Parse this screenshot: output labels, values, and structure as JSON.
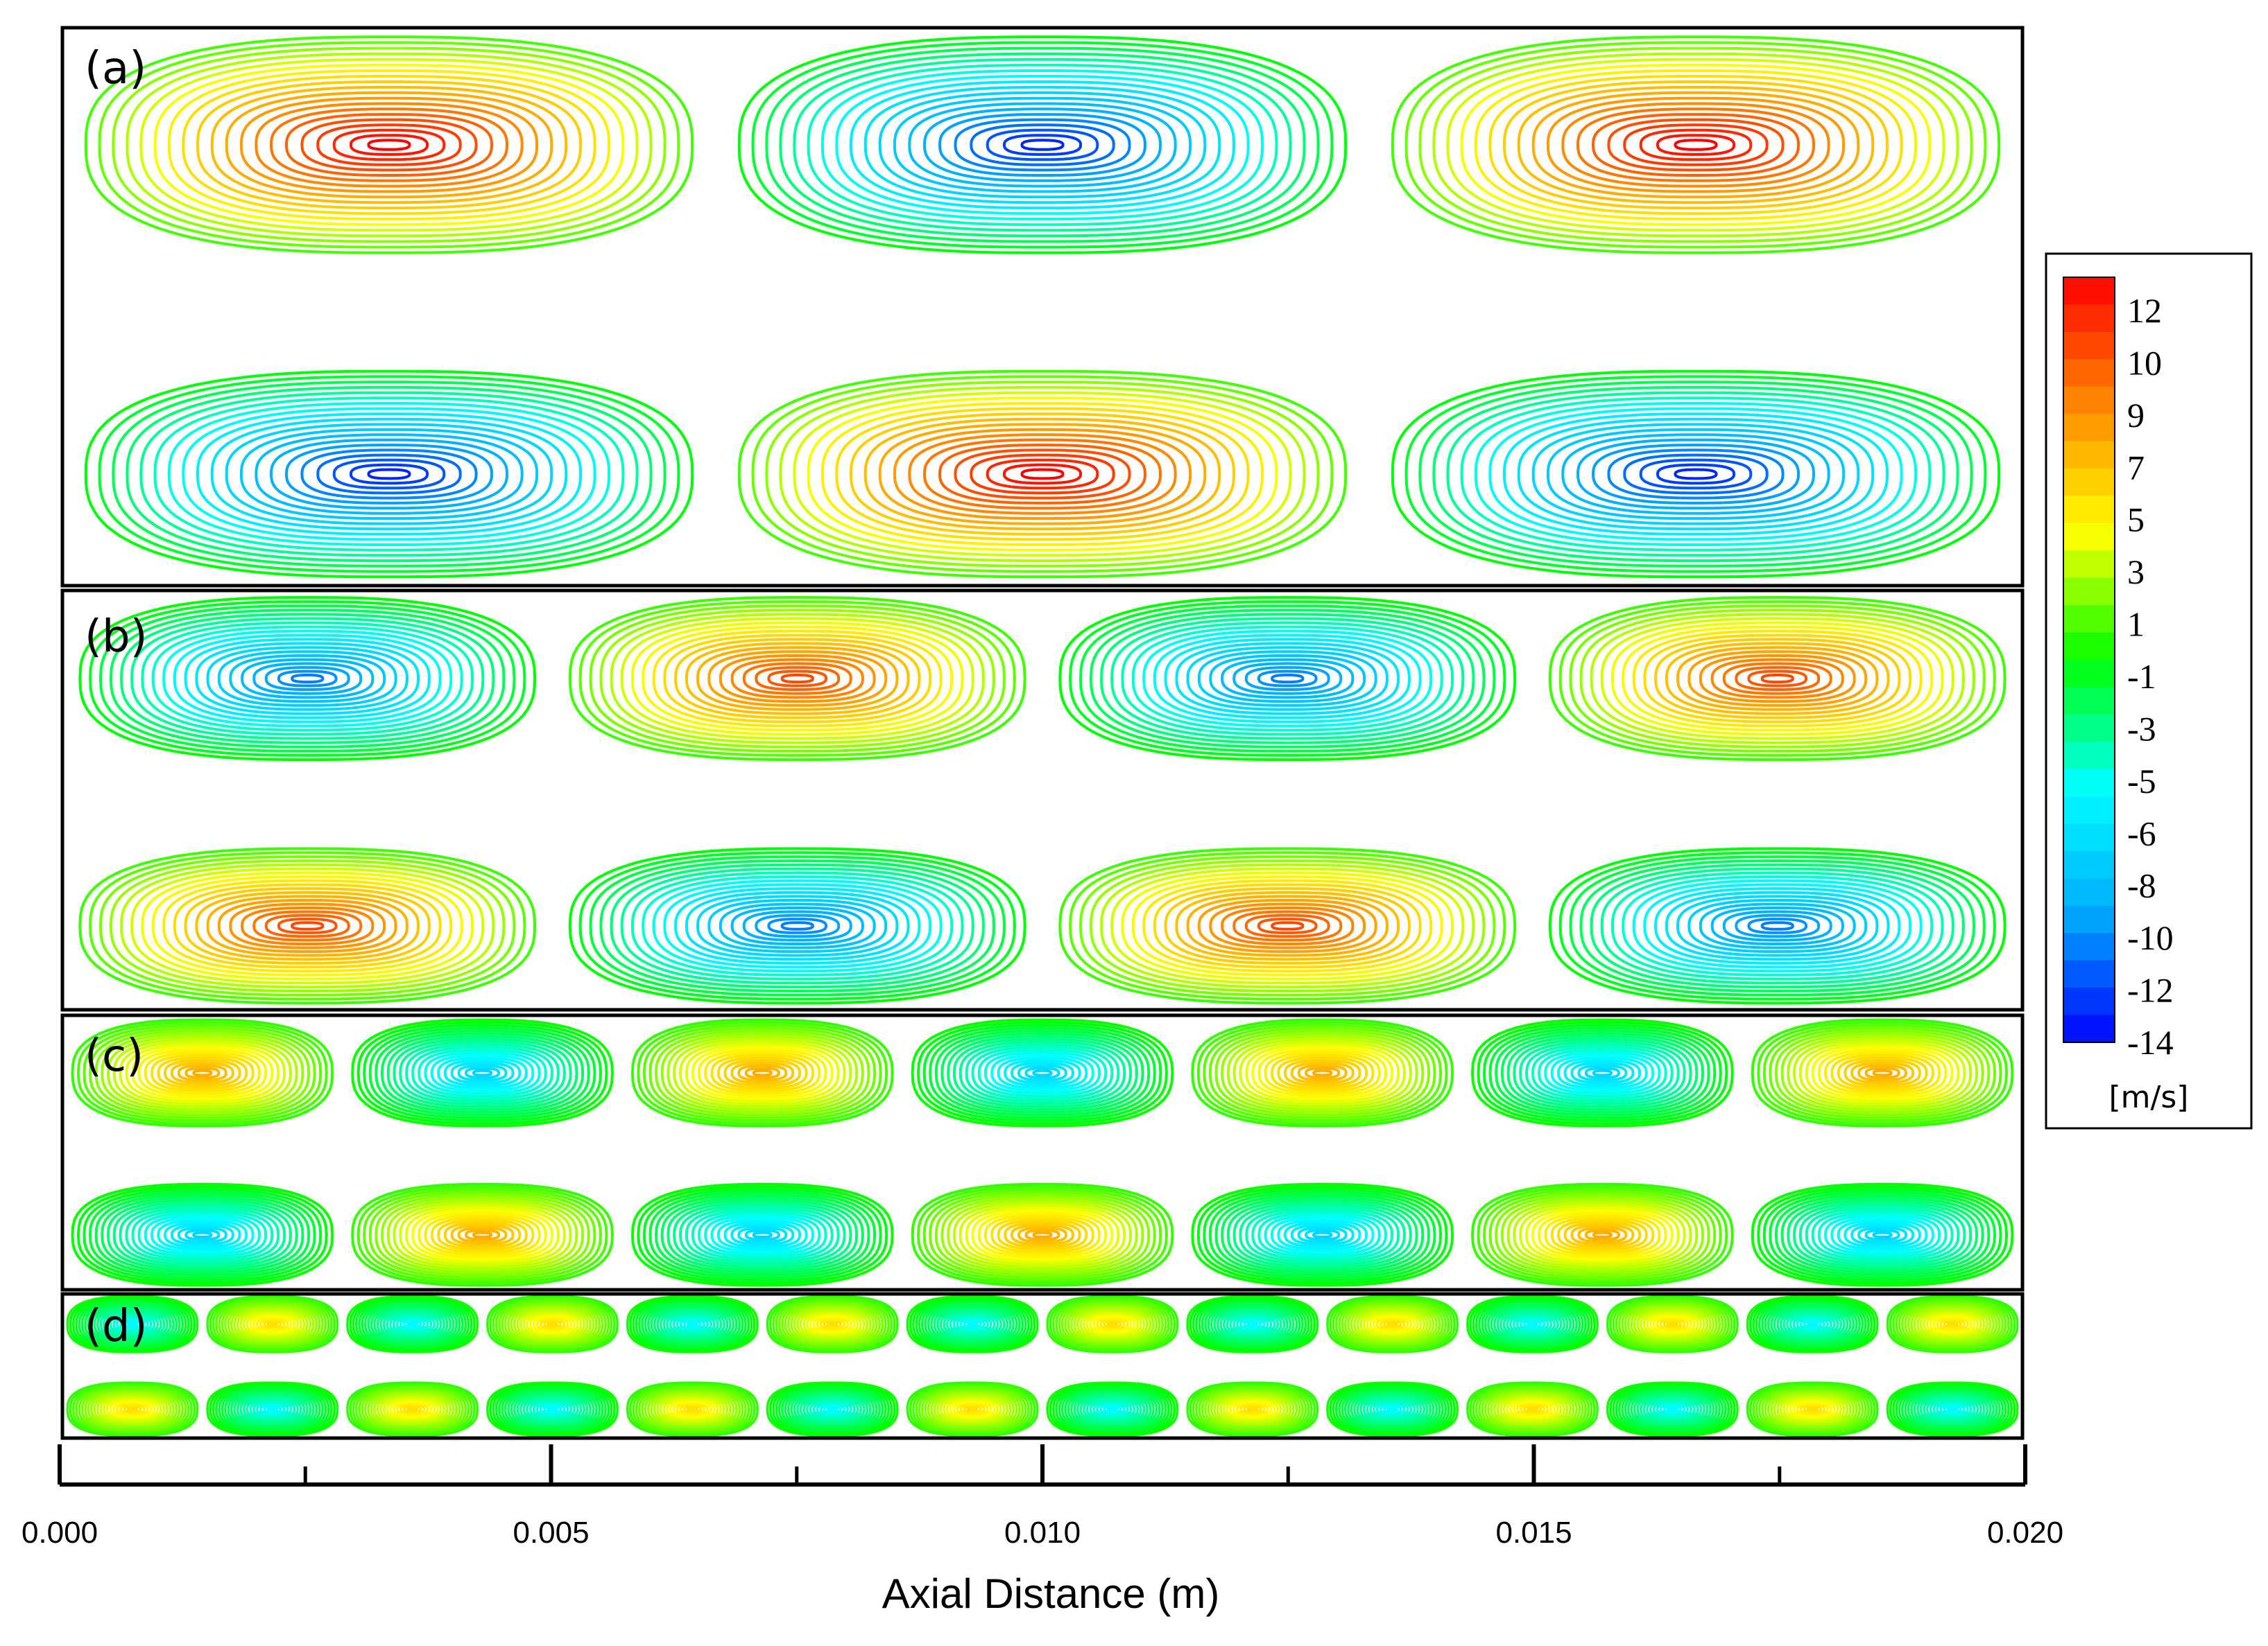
{
  "chart_data": {
    "type": "contour",
    "panels": [
      {
        "label": "(a)",
        "cells_per_row": 3,
        "first_top_sign": 1,
        "peak_fraction": 1.0
      },
      {
        "label": "(b)",
        "cells_per_row": 4,
        "first_top_sign": -1,
        "peak_fraction": 0.82
      },
      {
        "label": "(c)",
        "cells_per_row": 7,
        "first_top_sign": 1,
        "peak_fraction": 0.55
      },
      {
        "label": "(d)",
        "cells_per_row": 14,
        "first_top_sign": -1,
        "peak_fraction": 0.4
      }
    ],
    "x_axis": {
      "title": "Axial Distance (m)",
      "range": [
        0.0,
        0.02
      ],
      "major_ticks": [
        "0.000",
        "0.005",
        "0.010",
        "0.015",
        "0.020"
      ],
      "minor_tick_values": [
        0.0025,
        0.0075,
        0.0125,
        0.0175
      ]
    },
    "colorbar": {
      "unit": "[m/s]",
      "range": [
        -14,
        13
      ],
      "levels": 28,
      "labels": [
        "12",
        "10",
        "9",
        "7",
        "5",
        "3",
        "1",
        "-1",
        "-3",
        "-5",
        "-6",
        "-8",
        "-10",
        "-12",
        "-14"
      ],
      "colormap": [
        "#0000ff",
        "#00aaff",
        "#00ffff",
        "#00ff00",
        "#ffff00",
        "#ff8800",
        "#ff0000"
      ]
    }
  }
}
